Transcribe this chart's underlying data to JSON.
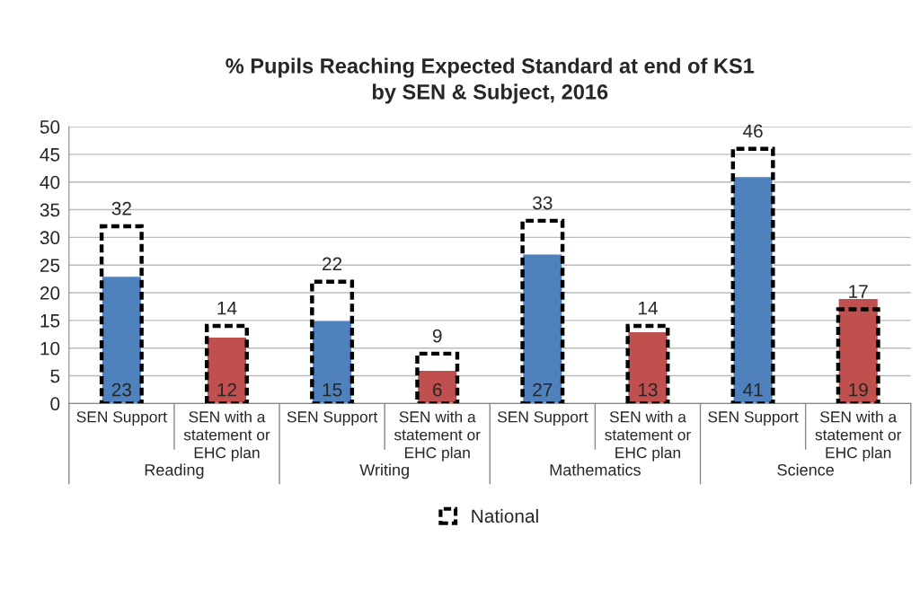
{
  "chart_data": {
    "type": "bar",
    "title": "% Pupils Reaching Expected Standard at end of KS1\nby SEN & Subject, 2016",
    "categories": [
      "SEN Support",
      "SEN with a\nstatement or\nEHC plan",
      "SEN Support",
      "SEN with a\nstatement or\nEHC plan",
      "SEN Support",
      "SEN with a\nstatement or\nEHC plan",
      "SEN Support",
      "SEN with a\nstatement or\nEHC plan"
    ],
    "series": [
      {
        "colors": [
          "#4f81bd",
          "#c0504d",
          "#4f81bd",
          "#c0504d",
          "#4f81bd",
          "#c0504d",
          "#4f81bd",
          "#c0504d"
        ],
        "values": [
          23,
          12,
          15,
          6,
          27,
          13,
          41,
          19
        ]
      },
      {
        "name": "National",
        "color": "#000000",
        "line_style": "dashed",
        "values": [
          32,
          14,
          22,
          9,
          33,
          14,
          46,
          17
        ]
      }
    ],
    "annotations": [
      "Reading",
      "Writing",
      "Mathematics",
      "Science"
    ],
    "ylim": [
      0,
      50
    ],
    "yticks": [
      0,
      5,
      10,
      15,
      20,
      25,
      30,
      35,
      40,
      45,
      50
    ],
    "grid": "y",
    "legend": "bottom",
    "data_labels": true
  }
}
